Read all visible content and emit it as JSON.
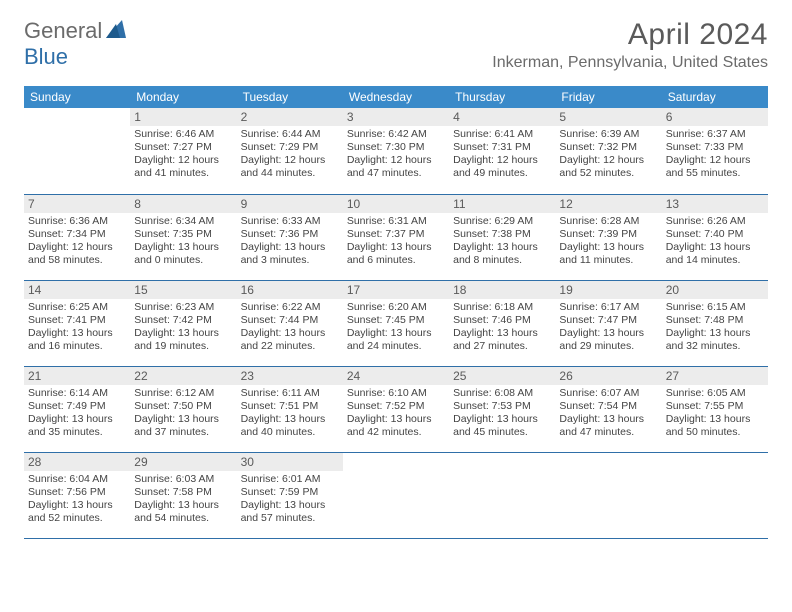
{
  "brand": {
    "general": "General",
    "blue": "Blue"
  },
  "title": "April 2024",
  "location": "Inkerman, Pennsylvania, United States",
  "colors": {
    "header_bg": "#3a8ac9",
    "daynum_bg": "#ececec",
    "rule": "#2f6fa8"
  },
  "weekdays": [
    "Sunday",
    "Monday",
    "Tuesday",
    "Wednesday",
    "Thursday",
    "Friday",
    "Saturday"
  ],
  "weeks": [
    [
      null,
      {
        "n": "1",
        "sr": "Sunrise: 6:46 AM",
        "ss": "Sunset: 7:27 PM",
        "dl": "Daylight: 12 hours and 41 minutes."
      },
      {
        "n": "2",
        "sr": "Sunrise: 6:44 AM",
        "ss": "Sunset: 7:29 PM",
        "dl": "Daylight: 12 hours and 44 minutes."
      },
      {
        "n": "3",
        "sr": "Sunrise: 6:42 AM",
        "ss": "Sunset: 7:30 PM",
        "dl": "Daylight: 12 hours and 47 minutes."
      },
      {
        "n": "4",
        "sr": "Sunrise: 6:41 AM",
        "ss": "Sunset: 7:31 PM",
        "dl": "Daylight: 12 hours and 49 minutes."
      },
      {
        "n": "5",
        "sr": "Sunrise: 6:39 AM",
        "ss": "Sunset: 7:32 PM",
        "dl": "Daylight: 12 hours and 52 minutes."
      },
      {
        "n": "6",
        "sr": "Sunrise: 6:37 AM",
        "ss": "Sunset: 7:33 PM",
        "dl": "Daylight: 12 hours and 55 minutes."
      }
    ],
    [
      {
        "n": "7",
        "sr": "Sunrise: 6:36 AM",
        "ss": "Sunset: 7:34 PM",
        "dl": "Daylight: 12 hours and 58 minutes."
      },
      {
        "n": "8",
        "sr": "Sunrise: 6:34 AM",
        "ss": "Sunset: 7:35 PM",
        "dl": "Daylight: 13 hours and 0 minutes."
      },
      {
        "n": "9",
        "sr": "Sunrise: 6:33 AM",
        "ss": "Sunset: 7:36 PM",
        "dl": "Daylight: 13 hours and 3 minutes."
      },
      {
        "n": "10",
        "sr": "Sunrise: 6:31 AM",
        "ss": "Sunset: 7:37 PM",
        "dl": "Daylight: 13 hours and 6 minutes."
      },
      {
        "n": "11",
        "sr": "Sunrise: 6:29 AM",
        "ss": "Sunset: 7:38 PM",
        "dl": "Daylight: 13 hours and 8 minutes."
      },
      {
        "n": "12",
        "sr": "Sunrise: 6:28 AM",
        "ss": "Sunset: 7:39 PM",
        "dl": "Daylight: 13 hours and 11 minutes."
      },
      {
        "n": "13",
        "sr": "Sunrise: 6:26 AM",
        "ss": "Sunset: 7:40 PM",
        "dl": "Daylight: 13 hours and 14 minutes."
      }
    ],
    [
      {
        "n": "14",
        "sr": "Sunrise: 6:25 AM",
        "ss": "Sunset: 7:41 PM",
        "dl": "Daylight: 13 hours and 16 minutes."
      },
      {
        "n": "15",
        "sr": "Sunrise: 6:23 AM",
        "ss": "Sunset: 7:42 PM",
        "dl": "Daylight: 13 hours and 19 minutes."
      },
      {
        "n": "16",
        "sr": "Sunrise: 6:22 AM",
        "ss": "Sunset: 7:44 PM",
        "dl": "Daylight: 13 hours and 22 minutes."
      },
      {
        "n": "17",
        "sr": "Sunrise: 6:20 AM",
        "ss": "Sunset: 7:45 PM",
        "dl": "Daylight: 13 hours and 24 minutes."
      },
      {
        "n": "18",
        "sr": "Sunrise: 6:18 AM",
        "ss": "Sunset: 7:46 PM",
        "dl": "Daylight: 13 hours and 27 minutes."
      },
      {
        "n": "19",
        "sr": "Sunrise: 6:17 AM",
        "ss": "Sunset: 7:47 PM",
        "dl": "Daylight: 13 hours and 29 minutes."
      },
      {
        "n": "20",
        "sr": "Sunrise: 6:15 AM",
        "ss": "Sunset: 7:48 PM",
        "dl": "Daylight: 13 hours and 32 minutes."
      }
    ],
    [
      {
        "n": "21",
        "sr": "Sunrise: 6:14 AM",
        "ss": "Sunset: 7:49 PM",
        "dl": "Daylight: 13 hours and 35 minutes."
      },
      {
        "n": "22",
        "sr": "Sunrise: 6:12 AM",
        "ss": "Sunset: 7:50 PM",
        "dl": "Daylight: 13 hours and 37 minutes."
      },
      {
        "n": "23",
        "sr": "Sunrise: 6:11 AM",
        "ss": "Sunset: 7:51 PM",
        "dl": "Daylight: 13 hours and 40 minutes."
      },
      {
        "n": "24",
        "sr": "Sunrise: 6:10 AM",
        "ss": "Sunset: 7:52 PM",
        "dl": "Daylight: 13 hours and 42 minutes."
      },
      {
        "n": "25",
        "sr": "Sunrise: 6:08 AM",
        "ss": "Sunset: 7:53 PM",
        "dl": "Daylight: 13 hours and 45 minutes."
      },
      {
        "n": "26",
        "sr": "Sunrise: 6:07 AM",
        "ss": "Sunset: 7:54 PM",
        "dl": "Daylight: 13 hours and 47 minutes."
      },
      {
        "n": "27",
        "sr": "Sunrise: 6:05 AM",
        "ss": "Sunset: 7:55 PM",
        "dl": "Daylight: 13 hours and 50 minutes."
      }
    ],
    [
      {
        "n": "28",
        "sr": "Sunrise: 6:04 AM",
        "ss": "Sunset: 7:56 PM",
        "dl": "Daylight: 13 hours and 52 minutes."
      },
      {
        "n": "29",
        "sr": "Sunrise: 6:03 AM",
        "ss": "Sunset: 7:58 PM",
        "dl": "Daylight: 13 hours and 54 minutes."
      },
      {
        "n": "30",
        "sr": "Sunrise: 6:01 AM",
        "ss": "Sunset: 7:59 PM",
        "dl": "Daylight: 13 hours and 57 minutes."
      },
      null,
      null,
      null,
      null
    ]
  ]
}
